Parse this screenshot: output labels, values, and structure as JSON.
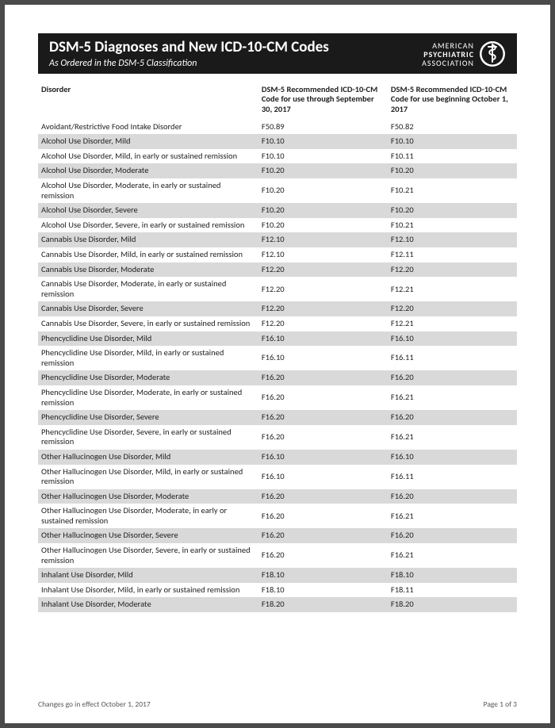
{
  "banner": {
    "title": "DSM-5 Diagnoses and New ICD-10-CM Codes",
    "subtitle": "As Ordered in the DSM-5 Classification",
    "org_l1": "AMERICAN",
    "org_l2": "PSYCHIATRIC",
    "org_l3": "ASSOCIATION"
  },
  "columns": {
    "c0": "Disorder",
    "c1": "DSM-5 Recommended ICD-10-CM Code for use through September 30, 2017",
    "c2": "DSM-5 Recommended ICD-10-CM Code for use beginning October 1, 2017"
  },
  "rows": [
    {
      "d": "Avoidant/Restrictive Food Intake Disorder",
      "a": "F50.89",
      "b": "F50.82",
      "s": false
    },
    {
      "d": "Alcohol Use Disorder, Mild",
      "a": "F10.10",
      "b": "F10.10",
      "s": true
    },
    {
      "d": "Alcohol Use Disorder, Mild, in early or sustained remission",
      "a": "F10.10",
      "b": "F10.11",
      "s": false
    },
    {
      "d": "Alcohol Use Disorder, Moderate",
      "a": "F10.20",
      "b": "F10.20",
      "s": true
    },
    {
      "d": "Alcohol Use Disorder, Moderate, in early or sustained remission",
      "a": "F10.20",
      "b": "F10.21",
      "s": false
    },
    {
      "d": "Alcohol Use Disorder, Severe",
      "a": "F10.20",
      "b": "F10.20",
      "s": true
    },
    {
      "d": "Alcohol Use Disorder, Severe, in early or sustained remission",
      "a": "F10.20",
      "b": "F10.21",
      "s": false
    },
    {
      "d": "Cannabis Use Disorder, Mild",
      "a": "F12.10",
      "b": "F12.10",
      "s": true
    },
    {
      "d": "Cannabis Use Disorder, Mild, in early or sustained remission",
      "a": "F12.10",
      "b": "F12.11",
      "s": false
    },
    {
      "d": "Cannabis Use Disorder, Moderate",
      "a": "F12.20",
      "b": "F12.20",
      "s": true
    },
    {
      "d": "Cannabis Use Disorder, Moderate, in early or sustained remission",
      "a": "F12.20",
      "b": "F12.21",
      "s": false
    },
    {
      "d": "Cannabis Use Disorder, Severe",
      "a": "F12.20",
      "b": "F12.20",
      "s": true
    },
    {
      "d": "Cannabis Use Disorder, Severe, in early or sustained remission",
      "a": "F12.20",
      "b": "F12.21",
      "s": false
    },
    {
      "d": "Phencyclidine Use Disorder, Mild",
      "a": "F16.10",
      "b": "F16.10",
      "s": true
    },
    {
      "d": "Phencyclidine Use Disorder, Mild, in early or sustained remission",
      "a": "F16.10",
      "b": "F16.11",
      "s": false
    },
    {
      "d": "Phencyclidine Use Disorder, Moderate",
      "a": "F16.20",
      "b": "F16.20",
      "s": true
    },
    {
      "d": "Phencyclidine Use Disorder, Moderate, in early or sustained remission",
      "a": "F16.20",
      "b": "F16.21",
      "s": false
    },
    {
      "d": "Phencyclidine Use Disorder, Severe",
      "a": "F16.20",
      "b": "F16.20",
      "s": true
    },
    {
      "d": "Phencyclidine Use Disorder, Severe, in early or sustained remission",
      "a": "F16.20",
      "b": "F16.21",
      "s": false
    },
    {
      "d": "Other Hallucinogen Use Disorder, Mild",
      "a": "F16.10",
      "b": "F16.10",
      "s": true
    },
    {
      "d": "Other Hallucinogen Use Disorder, Mild, in early or sustained remission",
      "a": "F16.10",
      "b": "F16.11",
      "s": false
    },
    {
      "d": "Other Hallucinogen Use Disorder, Moderate",
      "a": "F16.20",
      "b": "F16.20",
      "s": true
    },
    {
      "d": "Other Hallucinogen Use Disorder, Moderate, in early or sustained remission",
      "a": "F16.20",
      "b": "F16.21",
      "s": false
    },
    {
      "d": "Other Hallucinogen Use Disorder, Severe",
      "a": "F16.20",
      "b": "F16.20",
      "s": true
    },
    {
      "d": "Other Hallucinogen Use Disorder, Severe, in early or sustained remission",
      "a": "F16.20",
      "b": "F16.21",
      "s": false
    },
    {
      "d": "Inhalant Use Disorder, Mild",
      "a": "F18.10",
      "b": "F18.10",
      "s": true
    },
    {
      "d": "Inhalant Use Disorder, Mild, in early or sustained remission",
      "a": "F18.10",
      "b": "F18.11",
      "s": false
    },
    {
      "d": "Inhalant Use Disorder, Moderate",
      "a": "F18.20",
      "b": "F18.20",
      "s": true
    }
  ],
  "footer": {
    "left": "Changes go in effect October 1, 2017",
    "right": "Page 1 of 3"
  },
  "style": {
    "shade_color": "#d9d9d9",
    "banner_bg": "#1a1a1a",
    "text_color": "#222222",
    "page_bg": "#ffffff",
    "body_bg": "#4a4a4a",
    "font_size_body": 10.5,
    "font_size_title": 19
  }
}
